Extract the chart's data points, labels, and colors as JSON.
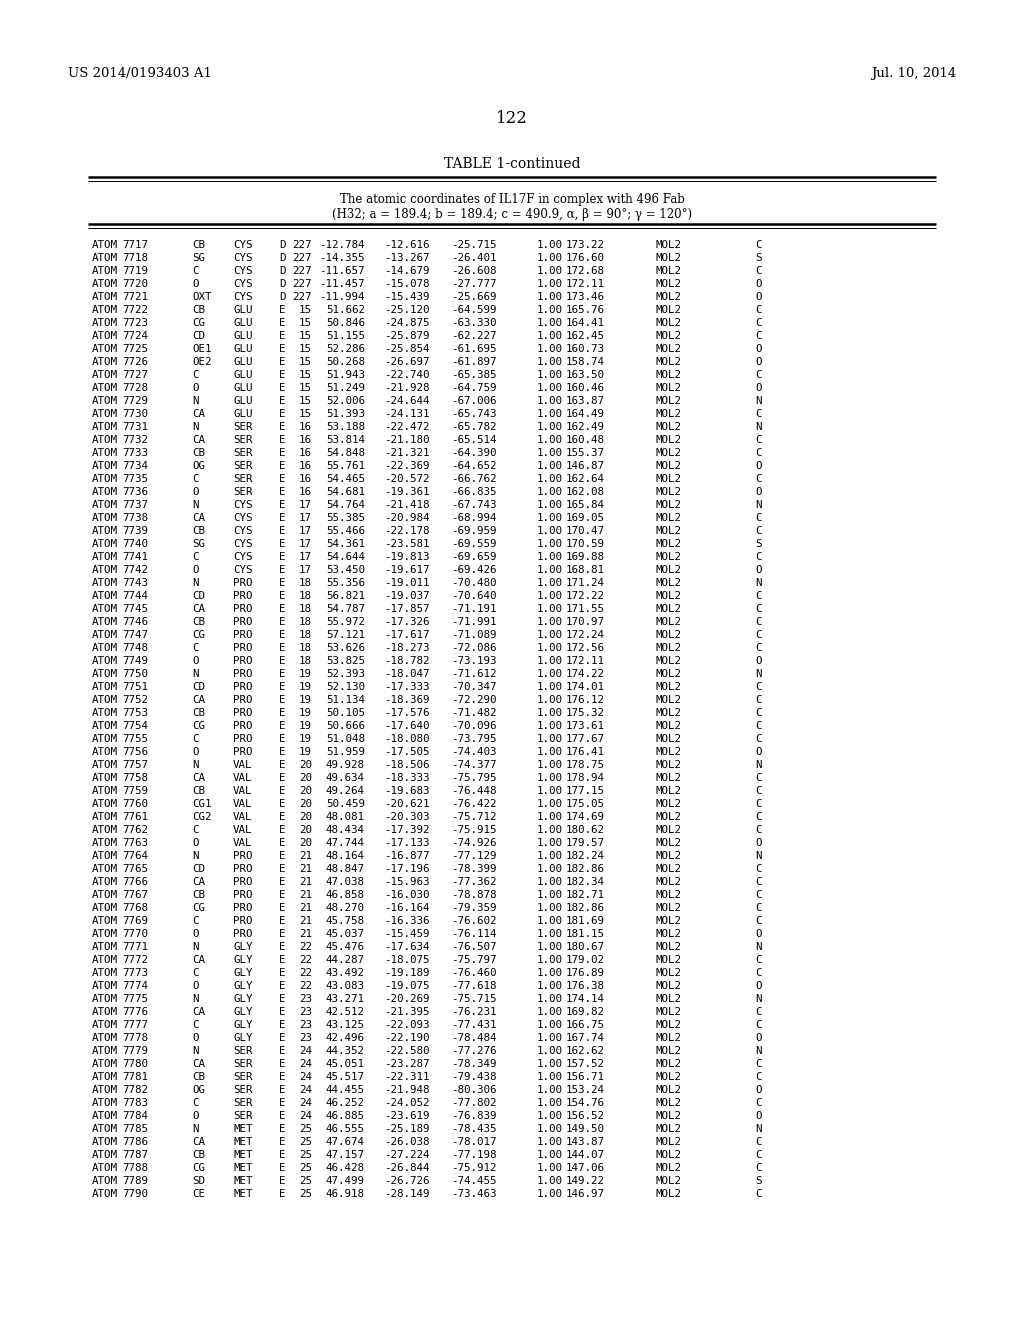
{
  "header_left": "US 2014/0193403 A1",
  "header_right": "Jul. 10, 2014",
  "page_number": "122",
  "table_title": "TABLE 1-continued",
  "table_subtitle1": "The atomic coordinates of IL17F in complex with 496 Fab",
  "table_subtitle2": "(H32; a = 189.4; b = 189.4; c = 490.9, α, β = 90°; γ = 120°)",
  "rows": [
    [
      "ATOM",
      "7717",
      "CB",
      "CYS",
      "D",
      "227",
      "-12.784",
      "-12.616",
      "-25.715",
      "1.00",
      "173.22",
      "MOL2",
      "C"
    ],
    [
      "ATOM",
      "7718",
      "SG",
      "CYS",
      "D",
      "227",
      "-14.355",
      "-13.267",
      "-26.401",
      "1.00",
      "176.60",
      "MOL2",
      "S"
    ],
    [
      "ATOM",
      "7719",
      "C",
      "CYS",
      "D",
      "227",
      "-11.657",
      "-14.679",
      "-26.608",
      "1.00",
      "172.68",
      "MOL2",
      "C"
    ],
    [
      "ATOM",
      "7720",
      "O",
      "CYS",
      "D",
      "227",
      "-11.457",
      "-15.078",
      "-27.777",
      "1.00",
      "172.11",
      "MOL2",
      "O"
    ],
    [
      "ATOM",
      "7721",
      "OXT",
      "CYS",
      "D",
      "227",
      "-11.994",
      "-15.439",
      "-25.669",
      "1.00",
      "173.46",
      "MOL2",
      "O"
    ],
    [
      "ATOM",
      "7722",
      "CB",
      "GLU",
      "E",
      "15",
      "51.662",
      "-25.120",
      "-64.599",
      "1.00",
      "165.76",
      "MOL2",
      "C"
    ],
    [
      "ATOM",
      "7723",
      "CG",
      "GLU",
      "E",
      "15",
      "50.846",
      "-24.875",
      "-63.330",
      "1.00",
      "164.41",
      "MOL2",
      "C"
    ],
    [
      "ATOM",
      "7724",
      "CD",
      "GLU",
      "E",
      "15",
      "51.155",
      "-25.879",
      "-62.227",
      "1.00",
      "162.45",
      "MOL2",
      "C"
    ],
    [
      "ATOM",
      "7725",
      "OE1",
      "GLU",
      "E",
      "15",
      "52.286",
      "-25.854",
      "-61.695",
      "1.00",
      "160.73",
      "MOL2",
      "O"
    ],
    [
      "ATOM",
      "7726",
      "OE2",
      "GLU",
      "E",
      "15",
      "50.268",
      "-26.697",
      "-61.897",
      "1.00",
      "158.74",
      "MOL2",
      "O"
    ],
    [
      "ATOM",
      "7727",
      "C",
      "GLU",
      "E",
      "15",
      "51.943",
      "-22.740",
      "-65.385",
      "1.00",
      "163.50",
      "MOL2",
      "C"
    ],
    [
      "ATOM",
      "7728",
      "O",
      "GLU",
      "E",
      "15",
      "51.249",
      "-21.928",
      "-64.759",
      "1.00",
      "160.46",
      "MOL2",
      "O"
    ],
    [
      "ATOM",
      "7729",
      "N",
      "GLU",
      "E",
      "15",
      "52.006",
      "-24.644",
      "-67.006",
      "1.00",
      "163.87",
      "MOL2",
      "N"
    ],
    [
      "ATOM",
      "7730",
      "CA",
      "GLU",
      "E",
      "15",
      "51.393",
      "-24.131",
      "-65.743",
      "1.00",
      "164.49",
      "MOL2",
      "C"
    ],
    [
      "ATOM",
      "7731",
      "N",
      "SER",
      "E",
      "16",
      "53.188",
      "-22.472",
      "-65.782",
      "1.00",
      "162.49",
      "MOL2",
      "N"
    ],
    [
      "ATOM",
      "7732",
      "CA",
      "SER",
      "E",
      "16",
      "53.814",
      "-21.180",
      "-65.514",
      "1.00",
      "160.48",
      "MOL2",
      "C"
    ],
    [
      "ATOM",
      "7733",
      "CB",
      "SER",
      "E",
      "16",
      "54.848",
      "-21.321",
      "-64.390",
      "1.00",
      "155.37",
      "MOL2",
      "C"
    ],
    [
      "ATOM",
      "7734",
      "OG",
      "SER",
      "E",
      "16",
      "55.761",
      "-22.369",
      "-64.652",
      "1.00",
      "146.87",
      "MOL2",
      "O"
    ],
    [
      "ATOM",
      "7735",
      "C",
      "SER",
      "E",
      "16",
      "54.465",
      "-20.572",
      "-66.762",
      "1.00",
      "162.64",
      "MOL2",
      "C"
    ],
    [
      "ATOM",
      "7736",
      "O",
      "SER",
      "E",
      "16",
      "54.681",
      "-19.361",
      "-66.835",
      "1.00",
      "162.08",
      "MOL2",
      "O"
    ],
    [
      "ATOM",
      "7737",
      "N",
      "CYS",
      "E",
      "17",
      "54.764",
      "-21.418",
      "-67.743",
      "1.00",
      "165.84",
      "MOL2",
      "N"
    ],
    [
      "ATOM",
      "7738",
      "CA",
      "CYS",
      "E",
      "17",
      "55.385",
      "-20.984",
      "-68.994",
      "1.00",
      "169.05",
      "MOL2",
      "C"
    ],
    [
      "ATOM",
      "7739",
      "CB",
      "CYS",
      "E",
      "17",
      "55.466",
      "-22.178",
      "-69.959",
      "1.00",
      "170.47",
      "MOL2",
      "C"
    ],
    [
      "ATOM",
      "7740",
      "SG",
      "CYS",
      "E",
      "17",
      "54.361",
      "-23.581",
      "-69.559",
      "1.00",
      "170.59",
      "MOL2",
      "S"
    ],
    [
      "ATOM",
      "7741",
      "C",
      "CYS",
      "E",
      "17",
      "54.644",
      "-19.813",
      "-69.659",
      "1.00",
      "169.88",
      "MOL2",
      "C"
    ],
    [
      "ATOM",
      "7742",
      "O",
      "CYS",
      "E",
      "17",
      "53.450",
      "-19.617",
      "-69.426",
      "1.00",
      "168.81",
      "MOL2",
      "O"
    ],
    [
      "ATOM",
      "7743",
      "N",
      "PRO",
      "E",
      "18",
      "55.356",
      "-19.011",
      "-70.480",
      "1.00",
      "171.24",
      "MOL2",
      "N"
    ],
    [
      "ATOM",
      "7744",
      "CD",
      "PRO",
      "E",
      "18",
      "56.821",
      "-19.037",
      "-70.640",
      "1.00",
      "172.22",
      "MOL2",
      "C"
    ],
    [
      "ATOM",
      "7745",
      "CA",
      "PRO",
      "E",
      "18",
      "54.787",
      "-17.857",
      "-71.191",
      "1.00",
      "171.55",
      "MOL2",
      "C"
    ],
    [
      "ATOM",
      "7746",
      "CB",
      "PRO",
      "E",
      "18",
      "55.972",
      "-17.326",
      "-71.991",
      "1.00",
      "170.97",
      "MOL2",
      "C"
    ],
    [
      "ATOM",
      "7747",
      "CG",
      "PRO",
      "E",
      "18",
      "57.121",
      "-17.617",
      "-71.089",
      "1.00",
      "172.24",
      "MOL2",
      "C"
    ],
    [
      "ATOM",
      "7748",
      "C",
      "PRO",
      "E",
      "18",
      "53.626",
      "-18.273",
      "-72.086",
      "1.00",
      "172.56",
      "MOL2",
      "C"
    ],
    [
      "ATOM",
      "7749",
      "O",
      "PRO",
      "E",
      "18",
      "53.825",
      "-18.782",
      "-73.193",
      "1.00",
      "172.11",
      "MOL2",
      "O"
    ],
    [
      "ATOM",
      "7750",
      "N",
      "PRO",
      "E",
      "19",
      "52.393",
      "-18.047",
      "-71.612",
      "1.00",
      "174.22",
      "MOL2",
      "N"
    ],
    [
      "ATOM",
      "7751",
      "CD",
      "PRO",
      "E",
      "19",
      "52.130",
      "-17.333",
      "-70.347",
      "1.00",
      "174.01",
      "MOL2",
      "C"
    ],
    [
      "ATOM",
      "7752",
      "CA",
      "PRO",
      "E",
      "19",
      "51.134",
      "-18.369",
      "-72.290",
      "1.00",
      "176.12",
      "MOL2",
      "C"
    ],
    [
      "ATOM",
      "7753",
      "CB",
      "PRO",
      "E",
      "19",
      "50.105",
      "-17.576",
      "-71.482",
      "1.00",
      "175.32",
      "MOL2",
      "C"
    ],
    [
      "ATOM",
      "7754",
      "CG",
      "PRO",
      "E",
      "19",
      "50.666",
      "-17.640",
      "-70.096",
      "1.00",
      "173.61",
      "MOL2",
      "C"
    ],
    [
      "ATOM",
      "7755",
      "C",
      "PRO",
      "E",
      "19",
      "51.048",
      "-18.080",
      "-73.795",
      "1.00",
      "177.67",
      "MOL2",
      "C"
    ],
    [
      "ATOM",
      "7756",
      "O",
      "PRO",
      "E",
      "19",
      "51.959",
      "-17.505",
      "-74.403",
      "1.00",
      "176.41",
      "MOL2",
      "O"
    ],
    [
      "ATOM",
      "7757",
      "N",
      "VAL",
      "E",
      "20",
      "49.928",
      "-18.506",
      "-74.377",
      "1.00",
      "178.75",
      "MOL2",
      "N"
    ],
    [
      "ATOM",
      "7758",
      "CA",
      "VAL",
      "E",
      "20",
      "49.634",
      "-18.333",
      "-75.795",
      "1.00",
      "178.94",
      "MOL2",
      "C"
    ],
    [
      "ATOM",
      "7759",
      "CB",
      "VAL",
      "E",
      "20",
      "49.264",
      "-19.683",
      "-76.448",
      "1.00",
      "177.15",
      "MOL2",
      "C"
    ],
    [
      "ATOM",
      "7760",
      "CG1",
      "VAL",
      "E",
      "20",
      "50.459",
      "-20.621",
      "-76.422",
      "1.00",
      "175.05",
      "MOL2",
      "C"
    ],
    [
      "ATOM",
      "7761",
      "CG2",
      "VAL",
      "E",
      "20",
      "48.081",
      "-20.303",
      "-75.712",
      "1.00",
      "174.69",
      "MOL2",
      "C"
    ],
    [
      "ATOM",
      "7762",
      "C",
      "VAL",
      "E",
      "20",
      "48.434",
      "-17.392",
      "-75.915",
      "1.00",
      "180.62",
      "MOL2",
      "C"
    ],
    [
      "ATOM",
      "7763",
      "O",
      "VAL",
      "E",
      "20",
      "47.744",
      "-17.133",
      "-74.926",
      "1.00",
      "179.57",
      "MOL2",
      "O"
    ],
    [
      "ATOM",
      "7764",
      "N",
      "PRO",
      "E",
      "21",
      "48.164",
      "-16.877",
      "-77.129",
      "1.00",
      "182.24",
      "MOL2",
      "N"
    ],
    [
      "ATOM",
      "7765",
      "CD",
      "PRO",
      "E",
      "21",
      "48.847",
      "-17.196",
      "-78.399",
      "1.00",
      "182.86",
      "MOL2",
      "C"
    ],
    [
      "ATOM",
      "7766",
      "CA",
      "PRO",
      "E",
      "21",
      "47.038",
      "-15.963",
      "-77.362",
      "1.00",
      "182.34",
      "MOL2",
      "C"
    ],
    [
      "ATOM",
      "7767",
      "CB",
      "PRO",
      "E",
      "21",
      "46.858",
      "-16.030",
      "-78.878",
      "1.00",
      "182.71",
      "MOL2",
      "C"
    ],
    [
      "ATOM",
      "7768",
      "CG",
      "PRO",
      "E",
      "21",
      "48.270",
      "-16.164",
      "-79.359",
      "1.00",
      "182.86",
      "MOL2",
      "C"
    ],
    [
      "ATOM",
      "7769",
      "C",
      "PRO",
      "E",
      "21",
      "45.758",
      "-16.336",
      "-76.602",
      "1.00",
      "181.69",
      "MOL2",
      "C"
    ],
    [
      "ATOM",
      "7770",
      "O",
      "PRO",
      "E",
      "21",
      "45.037",
      "-15.459",
      "-76.114",
      "1.00",
      "181.15",
      "MOL2",
      "O"
    ],
    [
      "ATOM",
      "7771",
      "N",
      "GLY",
      "E",
      "22",
      "45.476",
      "-17.634",
      "-76.507",
      "1.00",
      "180.67",
      "MOL2",
      "N"
    ],
    [
      "ATOM",
      "7772",
      "CA",
      "GLY",
      "E",
      "22",
      "44.287",
      "-18.075",
      "-75.797",
      "1.00",
      "179.02",
      "MOL2",
      "C"
    ],
    [
      "ATOM",
      "7773",
      "C",
      "GLY",
      "E",
      "22",
      "43.492",
      "-19.189",
      "-76.460",
      "1.00",
      "176.89",
      "MOL2",
      "C"
    ],
    [
      "ATOM",
      "7774",
      "O",
      "GLY",
      "E",
      "22",
      "43.083",
      "-19.075",
      "-77.618",
      "1.00",
      "176.38",
      "MOL2",
      "O"
    ],
    [
      "ATOM",
      "7775",
      "N",
      "GLY",
      "E",
      "23",
      "43.271",
      "-20.269",
      "-75.715",
      "1.00",
      "174.14",
      "MOL2",
      "N"
    ],
    [
      "ATOM",
      "7776",
      "CA",
      "GLY",
      "E",
      "23",
      "42.512",
      "-21.395",
      "-76.231",
      "1.00",
      "169.82",
      "MOL2",
      "C"
    ],
    [
      "ATOM",
      "7777",
      "C",
      "GLY",
      "E",
      "23",
      "43.125",
      "-22.093",
      "-77.431",
      "1.00",
      "166.75",
      "MOL2",
      "C"
    ],
    [
      "ATOM",
      "7778",
      "O",
      "GLY",
      "E",
      "23",
      "42.496",
      "-22.190",
      "-78.484",
      "1.00",
      "167.74",
      "MOL2",
      "O"
    ],
    [
      "ATOM",
      "7779",
      "N",
      "SER",
      "E",
      "24",
      "44.352",
      "-22.580",
      "-77.276",
      "1.00",
      "162.62",
      "MOL2",
      "N"
    ],
    [
      "ATOM",
      "7780",
      "CA",
      "SER",
      "E",
      "24",
      "45.051",
      "-23.287",
      "-78.349",
      "1.00",
      "157.52",
      "MOL2",
      "C"
    ],
    [
      "ATOM",
      "7781",
      "CB",
      "SER",
      "E",
      "24",
      "45.517",
      "-22.311",
      "-79.438",
      "1.00",
      "156.71",
      "MOL2",
      "C"
    ],
    [
      "ATOM",
      "7782",
      "OG",
      "SER",
      "E",
      "24",
      "44.455",
      "-21.948",
      "-80.306",
      "1.00",
      "153.24",
      "MOL2",
      "O"
    ],
    [
      "ATOM",
      "7783",
      "C",
      "SER",
      "E",
      "24",
      "46.252",
      "-24.052",
      "-77.802",
      "1.00",
      "154.76",
      "MOL2",
      "C"
    ],
    [
      "ATOM",
      "7784",
      "O",
      "SER",
      "E",
      "24",
      "46.885",
      "-23.619",
      "-76.839",
      "1.00",
      "156.52",
      "MOL2",
      "O"
    ],
    [
      "ATOM",
      "7785",
      "N",
      "MET",
      "E",
      "25",
      "46.555",
      "-25.189",
      "-78.435",
      "1.00",
      "149.50",
      "MOL2",
      "N"
    ],
    [
      "ATOM",
      "7786",
      "CA",
      "MET",
      "E",
      "25",
      "47.674",
      "-26.038",
      "-78.017",
      "1.00",
      "143.87",
      "MOL2",
      "C"
    ],
    [
      "ATOM",
      "7787",
      "CB",
      "MET",
      "E",
      "25",
      "47.157",
      "-27.224",
      "-77.198",
      "1.00",
      "144.07",
      "MOL2",
      "C"
    ],
    [
      "ATOM",
      "7788",
      "CG",
      "MET",
      "E",
      "25",
      "46.428",
      "-26.844",
      "-75.912",
      "1.00",
      "147.06",
      "MOL2",
      "C"
    ],
    [
      "ATOM",
      "7789",
      "SD",
      "MET",
      "E",
      "25",
      "47.499",
      "-26.726",
      "-74.455",
      "1.00",
      "149.22",
      "MOL2",
      "S"
    ],
    [
      "ATOM",
      "7790",
      "CE",
      "MET",
      "E",
      "25",
      "46.918",
      "-28.149",
      "-73.463",
      "1.00",
      "146.97",
      "MOL2",
      "C"
    ]
  ]
}
